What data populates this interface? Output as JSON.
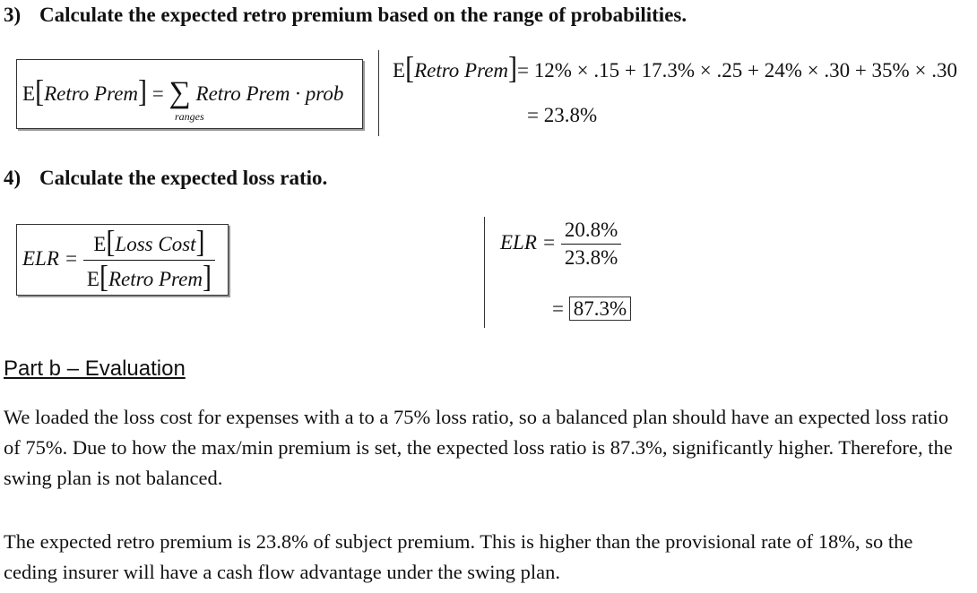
{
  "step3": {
    "number": "3)",
    "title": "Calculate the expected retro premium based on the range of probabilities.",
    "formula": {
      "E": "E",
      "retro_prem": "Retro Prem",
      "equals": "=",
      "sum_term": "Retro Prem · prob",
      "sum_sub": "ranges"
    },
    "calc": {
      "E": "E",
      "retro_prem": "Retro Prem",
      "expr": "= 12% × .15 + 17.3% × .25 + 24% × .30 + 35% × .30",
      "result": "= 23.8%"
    }
  },
  "step4": {
    "number": "4)",
    "title": "Calculate the expected loss ratio.",
    "formula": {
      "lhs": "ELR =",
      "num_E": "E",
      "num_term": "Loss Cost",
      "den_E": "E",
      "den_term": "Retro Prem"
    },
    "calc": {
      "lhs": "ELR =",
      "numerator": "20.8%",
      "denominator": "23.8%",
      "equals": "=",
      "result": "87.3%"
    }
  },
  "part_b": {
    "title": "Part b – Evaluation",
    "paragraph1": "We loaded the loss cost for expenses with a to a 75% loss ratio, so a balanced plan should have an expected loss ratio of 75%. Due to how the max/min premium is set, the expected loss ratio is 87.3%, significantly higher. Therefore, the swing plan is not balanced.",
    "paragraph2": "The expected retro premium is 23.8% of subject premium. This is higher than the provisional rate of 18%, so the ceding insurer will have a cash flow advantage under the swing plan."
  }
}
